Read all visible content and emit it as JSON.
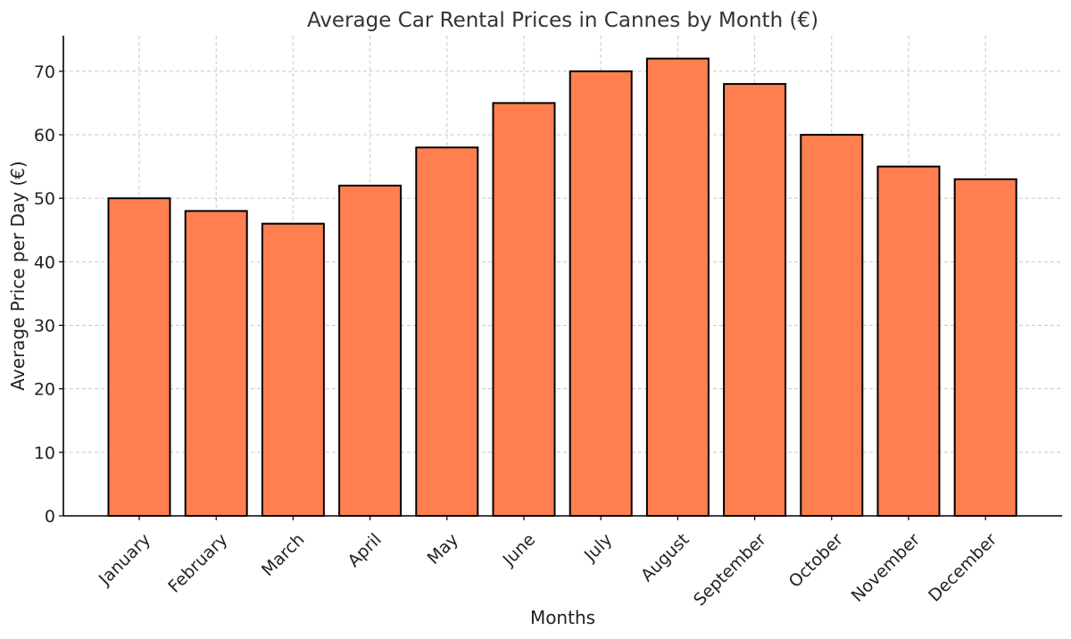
{
  "chart_data": {
    "type": "bar",
    "title": "Average Car Rental Prices in Cannes by Month (€)",
    "xlabel": "Months",
    "ylabel": "Average Price per Day (€)",
    "categories": [
      "January",
      "February",
      "March",
      "April",
      "May",
      "June",
      "July",
      "August",
      "September",
      "October",
      "November",
      "December"
    ],
    "values": [
      50,
      48,
      46,
      52,
      58,
      65,
      70,
      72,
      68,
      60,
      55,
      53
    ],
    "ylim": [
      0,
      75.6
    ],
    "yticks": [
      0,
      10,
      20,
      30,
      40,
      50,
      60,
      70
    ],
    "grid": true,
    "bar_color": "#ff7f50",
    "edge_color": "#000000"
  }
}
